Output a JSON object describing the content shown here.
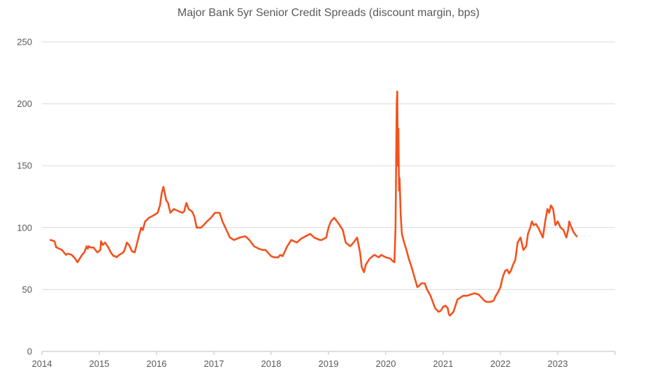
{
  "chart_data": {
    "type": "line",
    "title": "Major Bank 5yr Senior Credit Spreads (discount margin, bps)",
    "xlabel": "",
    "ylabel": "",
    "xlim": [
      2014,
      2024
    ],
    "ylim": [
      0,
      250
    ],
    "x_ticks": [
      "2014",
      "2015",
      "2016",
      "2017",
      "2018",
      "2019",
      "2020",
      "2021",
      "2022",
      "2023"
    ],
    "y_ticks": [
      0,
      50,
      100,
      150,
      200,
      250
    ],
    "grid": "horizontal",
    "legend": "none",
    "color": "#F4511E",
    "series": [
      {
        "x": [
          2014.15,
          2014.22,
          2014.25,
          2014.26,
          2014.3,
          2014.35,
          2014.42,
          2014.45,
          2014.52,
          2014.58,
          2014.62,
          2014.66,
          2014.7,
          2014.74,
          2014.78,
          2014.8,
          2014.82,
          2014.85,
          2014.9,
          2014.95,
          2014.97,
          2015.02,
          2015.03,
          2015.06,
          2015.1,
          2015.13,
          2015.16,
          2015.2,
          2015.25,
          2015.28,
          2015.3,
          2015.35,
          2015.42,
          2015.45,
          2015.48,
          2015.52,
          2015.57,
          2015.62,
          2015.7,
          2015.73,
          2015.76,
          2015.8,
          2015.87,
          2015.95,
          2016.02,
          2016.06,
          2016.09,
          2016.12,
          2016.17,
          2016.2,
          2016.24,
          2016.3,
          2016.4,
          2016.45,
          2016.48,
          2016.52,
          2016.56,
          2016.62,
          2016.66,
          2016.7,
          2016.78,
          2016.88,
          2016.95,
          2017.02,
          2017.1,
          2017.15,
          2017.2,
          2017.28,
          2017.35,
          2017.45,
          2017.55,
          2017.62,
          2017.7,
          2017.78,
          2017.85,
          2017.9,
          2018.0,
          2018.05,
          2018.08,
          2018.12,
          2018.16,
          2018.2,
          2018.28,
          2018.35,
          2018.45,
          2018.52,
          2018.6,
          2018.68,
          2018.75,
          2018.85,
          2018.88,
          2018.92,
          2018.96,
          2019.0,
          2019.04,
          2019.1,
          2019.18,
          2019.25,
          2019.3,
          2019.35,
          2019.38,
          2019.42,
          2019.47,
          2019.5,
          2019.55,
          2019.58,
          2019.62,
          2019.65,
          2019.72,
          2019.8,
          2019.88,
          2019.92,
          2020.0,
          2020.08,
          2020.12,
          2020.15,
          2020.17,
          2020.19,
          2020.2,
          2020.21,
          2020.22,
          2020.23,
          2020.24,
          2020.26,
          2020.28,
          2020.32,
          2020.36,
          2020.4,
          2020.45,
          2020.5,
          2020.55,
          2020.58,
          2020.62,
          2020.68,
          2020.72,
          2020.78,
          2020.82,
          2020.86,
          2020.92,
          2020.96,
          2021.0,
          2021.04,
          2021.08,
          2021.1,
          2021.12,
          2021.14,
          2021.18,
          2021.25,
          2021.35,
          2021.42,
          2021.48,
          2021.55,
          2021.62,
          2021.66,
          2021.72,
          2021.76,
          2021.82,
          2021.88,
          2021.92,
          2021.96,
          2022.0,
          2022.04,
          2022.08,
          2022.12,
          2022.15,
          2022.18,
          2022.22,
          2022.26,
          2022.3,
          2022.35,
          2022.4,
          2022.45,
          2022.48,
          2022.52,
          2022.55,
          2022.58,
          2022.62,
          2022.66,
          2022.7,
          2022.74,
          2022.78,
          2022.8,
          2022.82,
          2022.85,
          2022.88,
          2022.92,
          2022.96,
          2023.0,
          2023.05,
          2023.1,
          2023.15,
          2023.18,
          2023.2,
          2023.24,
          2023.28,
          2023.33
        ],
        "y": [
          90,
          89,
          84,
          84,
          83,
          82,
          78,
          79,
          78,
          75,
          72,
          75,
          78,
          80,
          85,
          83,
          85,
          84,
          84,
          81,
          80,
          82,
          89,
          86,
          88,
          86,
          84,
          80,
          77,
          77,
          76,
          78,
          80,
          83,
          88,
          86,
          81,
          80,
          95,
          100,
          98,
          105,
          108,
          110,
          112,
          118,
          128,
          133,
          122,
          120,
          112,
          115,
          113,
          112,
          113,
          120,
          115,
          113,
          109,
          100,
          100,
          105,
          108,
          112,
          112,
          105,
          100,
          92,
          90,
          92,
          93,
          90,
          85,
          83,
          82,
          82,
          77,
          76,
          76,
          76,
          78,
          77,
          85,
          90,
          88,
          91,
          93,
          95,
          92,
          90,
          90,
          91,
          92,
          100,
          105,
          108,
          103,
          98,
          88,
          86,
          85,
          87,
          90,
          92,
          80,
          68,
          64,
          70,
          75,
          78,
          76,
          78,
          76,
          75,
          73,
          72,
          100,
          200,
          210,
          150,
          180,
          130,
          140,
          110,
          95,
          88,
          82,
          75,
          68,
          60,
          52,
          53,
          55,
          55,
          50,
          45,
          40,
          35,
          32,
          33,
          36,
          37,
          35,
          30,
          29,
          30,
          32,
          42,
          45,
          45,
          46,
          47,
          46,
          44,
          41,
          40,
          40,
          41,
          45,
          48,
          52,
          60,
          65,
          66,
          63,
          65,
          70,
          74,
          88,
          92,
          82,
          85,
          95,
          100,
          105,
          102,
          103,
          100,
          96,
          92,
          105,
          110,
          115,
          112,
          118,
          115,
          102,
          105,
          100,
          98,
          92,
          98,
          105,
          100,
          96,
          93
        ]
      }
    ]
  }
}
